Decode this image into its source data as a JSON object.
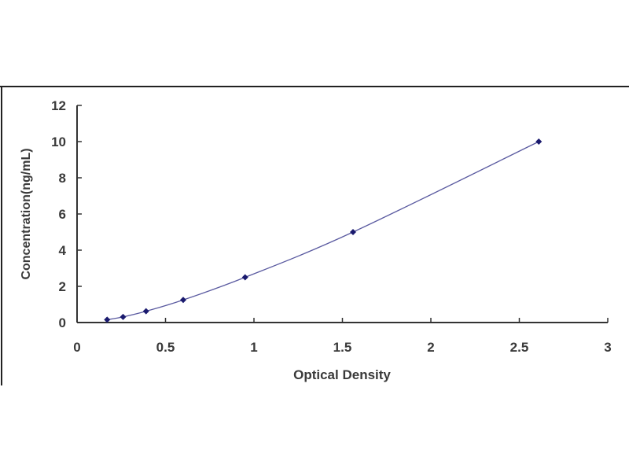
{
  "chart_data": {
    "type": "scatter",
    "title": "",
    "xlabel": "Optical Density",
    "ylabel": "Concentration(ng/mL)",
    "xlim": [
      0,
      3
    ],
    "ylim": [
      0,
      12
    ],
    "x_ticks": [
      "0",
      "0.5",
      "1",
      "1.5",
      "2",
      "2.5",
      "3"
    ],
    "y_ticks": [
      "0",
      "2",
      "4",
      "6",
      "8",
      "10",
      "12"
    ],
    "grid": false,
    "fit_line": true,
    "series": [
      {
        "x": [
          0.17,
          0.26,
          0.39,
          0.6,
          0.95,
          1.56,
          2.61
        ],
        "y": [
          0.156,
          0.312,
          0.625,
          1.25,
          2.5,
          5,
          10
        ],
        "color": "#1a1a6e",
        "line_color": "#5a5aa0"
      }
    ]
  }
}
